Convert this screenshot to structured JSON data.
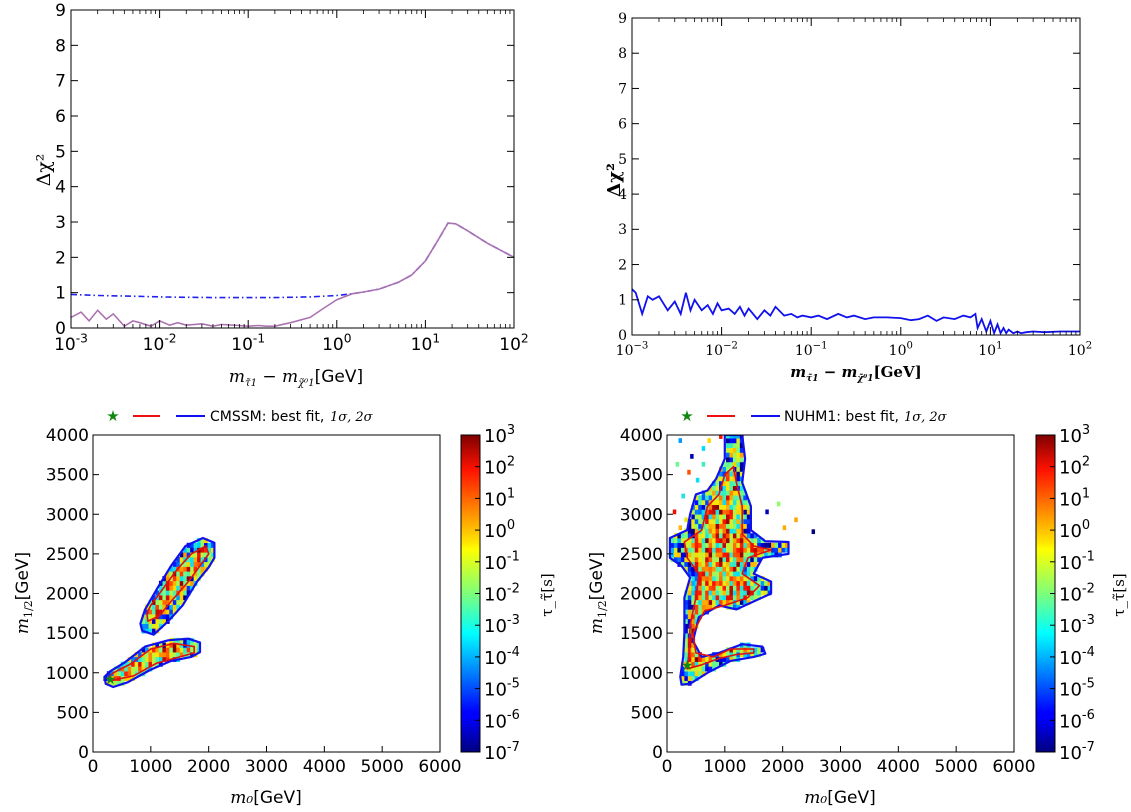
{
  "chart_data": [
    {
      "type": "line",
      "panel": "top-left",
      "x_scale": "log",
      "xlim": [
        0.001,
        100
      ],
      "ylim": [
        0,
        9
      ],
      "xlabel_math": "m_{τ̃1} − m_{χ̃⁰1}",
      "xlabel_unit": "[GeV]",
      "ylabel": "Δχ²",
      "x_ticks": [
        {
          "b": "10",
          "e": "-3"
        },
        {
          "b": "10",
          "e": "-2"
        },
        {
          "b": "10",
          "e": "-1"
        },
        {
          "b": "10",
          "e": "0"
        },
        {
          "b": "10",
          "e": "1"
        },
        {
          "b": "10",
          "e": "2"
        }
      ],
      "y_ticks": [
        "0",
        "1",
        "2",
        "3",
        "4",
        "5",
        "6",
        "7",
        "8",
        "9"
      ],
      "grid": false,
      "series": [
        {
          "style": "dash-dot",
          "color": "#2222ee",
          "x": [
            0.001,
            0.002,
            0.005,
            0.01,
            0.02,
            0.05,
            0.1,
            0.2,
            0.5,
            1.0,
            1.5,
            2.0,
            3.0,
            5.0,
            7.0,
            10,
            14,
            18,
            22,
            30,
            50,
            100
          ],
          "y": [
            0.95,
            0.92,
            0.9,
            0.88,
            0.87,
            0.86,
            0.86,
            0.86,
            0.88,
            0.92,
            0.97,
            1.02,
            1.1,
            1.3,
            1.5,
            1.9,
            2.5,
            2.97,
            2.95,
            2.75,
            2.4,
            2.0
          ]
        },
        {
          "style": "solid",
          "color": "#c070c8",
          "x": [
            0.001,
            0.0013,
            0.0016,
            0.002,
            0.0025,
            0.003,
            0.004,
            0.005,
            0.006,
            0.008,
            0.01,
            0.013,
            0.016,
            0.02,
            0.03,
            0.04,
            0.05,
            0.07,
            0.1,
            0.13,
            0.16,
            0.2,
            0.3,
            0.5,
            0.7,
            1.0,
            1.5,
            2.0,
            3.0,
            5.0,
            7.0,
            10,
            14,
            18,
            22,
            30,
            50,
            100
          ],
          "y": [
            0.3,
            0.45,
            0.2,
            0.5,
            0.25,
            0.4,
            0.05,
            0.2,
            0.15,
            0.05,
            0.2,
            0.08,
            0.15,
            0.08,
            0.12,
            0.05,
            0.1,
            0.08,
            0.05,
            0.07,
            0.05,
            0.05,
            0.15,
            0.3,
            0.55,
            0.8,
            0.97,
            1.02,
            1.1,
            1.3,
            1.5,
            1.9,
            2.5,
            2.97,
            2.95,
            2.75,
            2.4,
            2.0
          ]
        }
      ]
    },
    {
      "type": "line",
      "panel": "top-right",
      "x_scale": "log",
      "xlim": [
        0.001,
        100
      ],
      "ylim": [
        0,
        9
      ],
      "xlabel_math": "m_{τ̃1} − m_{χ̃⁰1}",
      "xlabel_unit": "[GeV]",
      "ylabel": "Δχ²",
      "x_ticks": [
        {
          "b": "10",
          "e": "−3"
        },
        {
          "b": "10",
          "e": "−2"
        },
        {
          "b": "10",
          "e": "−1"
        },
        {
          "b": "10",
          "e": "0"
        },
        {
          "b": "10",
          "e": "1"
        },
        {
          "b": "10",
          "e": "2"
        }
      ],
      "y_ticks": [
        "0",
        "1",
        "2",
        "3",
        "4",
        "5",
        "6",
        "7",
        "8",
        "9"
      ],
      "grid": false,
      "series": [
        {
          "style": "solid",
          "color": "#1111ee",
          "x": [
            0.001,
            0.0011,
            0.0013,
            0.0015,
            0.0017,
            0.002,
            0.0025,
            0.003,
            0.0035,
            0.004,
            0.0045,
            0.005,
            0.006,
            0.007,
            0.008,
            0.009,
            0.01,
            0.012,
            0.014,
            0.016,
            0.018,
            0.02,
            0.025,
            0.03,
            0.035,
            0.04,
            0.05,
            0.06,
            0.07,
            0.08,
            0.1,
            0.12,
            0.15,
            0.2,
            0.25,
            0.3,
            0.4,
            0.5,
            0.7,
            1.0,
            1.3,
            1.6,
            2.0,
            2.5,
            3.0,
            4.0,
            5.0,
            6.0,
            6.8,
            7.2,
            8.0,
            9.0,
            10,
            11,
            12,
            13,
            14,
            15,
            16,
            18,
            20,
            22,
            25,
            30,
            40,
            60,
            100
          ],
          "y": [
            1.3,
            1.2,
            0.6,
            1.1,
            1.0,
            1.1,
            0.7,
            0.95,
            0.6,
            1.2,
            0.7,
            1.0,
            0.7,
            0.85,
            0.6,
            0.9,
            0.7,
            0.75,
            0.6,
            0.8,
            0.55,
            0.75,
            0.45,
            0.7,
            0.55,
            0.8,
            0.55,
            0.6,
            0.5,
            0.55,
            0.5,
            0.55,
            0.45,
            0.6,
            0.5,
            0.55,
            0.45,
            0.5,
            0.5,
            0.48,
            0.42,
            0.45,
            0.55,
            0.4,
            0.5,
            0.45,
            0.55,
            0.5,
            0.6,
            0.2,
            0.45,
            0.1,
            0.4,
            0.05,
            0.3,
            0.05,
            0.2,
            0.05,
            0.15,
            0.05,
            0.1,
            0.05,
            0.08,
            0.1,
            0.08,
            0.1,
            0.1
          ]
        }
      ]
    },
    {
      "type": "heatmap",
      "panel": "bottom-left",
      "xlim": [
        0,
        6000
      ],
      "ylim": [
        0,
        4000
      ],
      "xlabel_math": "m₀",
      "xlabel_unit": "[GeV]",
      "ylabel_math": "m_{1/2}",
      "ylabel_unit": "[GeV]",
      "x_ticks": [
        "0",
        "1000",
        "2000",
        "3000",
        "4000",
        "5000",
        "6000"
      ],
      "y_ticks": [
        "0",
        "500",
        "1000",
        "1500",
        "2000",
        "2500",
        "3000",
        "3500",
        "4000"
      ],
      "legend_text": "CMSSM: best fit,",
      "legend_sigma": "1σ, 2σ",
      "colorbar_label": "τ_τ̃[s]",
      "colorbar_ticks": [
        {
          "b": "10",
          "e": "3"
        },
        {
          "b": "10",
          "e": "2"
        },
        {
          "b": "10",
          "e": "1"
        },
        {
          "b": "10",
          "e": "0"
        },
        {
          "b": "10",
          "e": "-1"
        },
        {
          "b": "10",
          "e": "-2"
        },
        {
          "b": "10",
          "e": "-3"
        },
        {
          "b": "10",
          "e": "-4"
        },
        {
          "b": "10",
          "e": "-5"
        },
        {
          "b": "10",
          "e": "-6"
        },
        {
          "b": "10",
          "e": "-7"
        }
      ],
      "regions": [
        {
          "name": "lower strip",
          "outline_2sigma": [
            [
              220,
              860
            ],
            [
              350,
              820
            ],
            [
              600,
              880
            ],
            [
              1000,
              1040
            ],
            [
              1350,
              1150
            ],
            [
              1700,
              1200
            ],
            [
              1850,
              1260
            ],
            [
              1850,
              1380
            ],
            [
              1650,
              1430
            ],
            [
              1300,
              1410
            ],
            [
              900,
              1330
            ],
            [
              550,
              1130
            ],
            [
              300,
              1020
            ],
            [
              200,
              950
            ]
          ],
          "outline_1sigma": [
            [
              300,
              900
            ],
            [
              700,
              960
            ],
            [
              1100,
              1120
            ],
            [
              1500,
              1200
            ],
            [
              1750,
              1250
            ],
            [
              1750,
              1330
            ],
            [
              1400,
              1370
            ],
            [
              1000,
              1300
            ],
            [
              650,
              1110
            ],
            [
              350,
              1000
            ],
            [
              280,
              950
            ]
          ]
        },
        {
          "name": "upper band",
          "outline_2sigma": [
            [
              850,
              1530
            ],
            [
              1050,
              1480
            ],
            [
              1300,
              1650
            ],
            [
              1550,
              1850
            ],
            [
              1800,
              2150
            ],
            [
              2000,
              2330
            ],
            [
              2100,
              2450
            ],
            [
              2100,
              2640
            ],
            [
              1900,
              2700
            ],
            [
              1600,
              2600
            ],
            [
              1350,
              2350
            ],
            [
              1100,
              2050
            ],
            [
              900,
              1800
            ],
            [
              820,
              1620
            ]
          ],
          "outline_1sigma": [
            [
              950,
              1650
            ],
            [
              1150,
              1720
            ],
            [
              1350,
              1900
            ],
            [
              1650,
              2150
            ],
            [
              1850,
              2350
            ],
            [
              2000,
              2500
            ],
            [
              1950,
              2600
            ],
            [
              1700,
              2500
            ],
            [
              1450,
              2300
            ],
            [
              1200,
              2050
            ],
            [
              1000,
              1850
            ],
            [
              930,
              1750
            ]
          ]
        }
      ],
      "best_fit": [
        300,
        920
      ]
    },
    {
      "type": "heatmap",
      "panel": "bottom-right",
      "xlim": [
        0,
        6000
      ],
      "ylim": [
        0,
        4000
      ],
      "xlabel_math": "m₀",
      "xlabel_unit": "[GeV]",
      "ylabel_math": "m_{1/2}",
      "ylabel_unit": "[GeV]",
      "x_ticks": [
        "0",
        "1000",
        "2000",
        "3000",
        "4000",
        "5000",
        "6000"
      ],
      "y_ticks": [
        "0",
        "500",
        "1000",
        "1500",
        "2000",
        "2500",
        "3000",
        "3500",
        "4000"
      ],
      "legend_text": "NUHM1: best fit,",
      "legend_sigma": "1σ, 2σ",
      "colorbar_label": "τ_τ̃[s]",
      "colorbar_ticks": [
        {
          "b": "10",
          "e": "3"
        },
        {
          "b": "10",
          "e": "2"
        },
        {
          "b": "10",
          "e": "1"
        },
        {
          "b": "10",
          "e": "0"
        },
        {
          "b": "10",
          "e": "-1"
        },
        {
          "b": "10",
          "e": "-2"
        },
        {
          "b": "10",
          "e": "-3"
        },
        {
          "b": "10",
          "e": "-4"
        },
        {
          "b": "10",
          "e": "-5"
        },
        {
          "b": "10",
          "e": "-6"
        },
        {
          "b": "10",
          "e": "-7"
        }
      ],
      "regions": [
        {
          "name": "main region",
          "outline_2sigma": [
            [
              250,
              850
            ],
            [
              400,
              860
            ],
            [
              700,
              1000
            ],
            [
              1100,
              1150
            ],
            [
              1500,
              1200
            ],
            [
              1700,
              1240
            ],
            [
              1650,
              1330
            ],
            [
              1300,
              1360
            ],
            [
              900,
              1250
            ],
            [
              600,
              1200
            ],
            [
              450,
              1400
            ],
            [
              550,
              1700
            ],
            [
              900,
              1850
            ],
            [
              1200,
              1800
            ],
            [
              1500,
              1900
            ],
            [
              1800,
              2000
            ],
            [
              1800,
              2150
            ],
            [
              1500,
              2250
            ],
            [
              1650,
              2450
            ],
            [
              2100,
              2500
            ],
            [
              2100,
              2650
            ],
            [
              1700,
              2660
            ],
            [
              1450,
              2800
            ],
            [
              1450,
              3100
            ],
            [
              1300,
              3400
            ],
            [
              1350,
              3700
            ],
            [
              1300,
              4000
            ],
            [
              1000,
              4000
            ],
            [
              1000,
              3700
            ],
            [
              850,
              3450
            ],
            [
              700,
              3300
            ],
            [
              500,
              3250
            ],
            [
              400,
              3000
            ],
            [
              350,
              2800
            ],
            [
              50,
              2700
            ],
            [
              50,
              2450
            ],
            [
              250,
              2350
            ],
            [
              400,
              2200
            ],
            [
              300,
              1950
            ],
            [
              300,
              1500
            ],
            [
              280,
              1200
            ],
            [
              230,
              950
            ]
          ],
          "outline_1sigma": [
            [
              350,
              1050
            ],
            [
              600,
              1100
            ],
            [
              900,
              1180
            ],
            [
              1200,
              1230
            ],
            [
              1500,
              1250
            ],
            [
              1500,
              1300
            ],
            [
              1100,
              1300
            ],
            [
              800,
              1200
            ],
            [
              500,
              1250
            ],
            [
              450,
              1500
            ],
            [
              650,
              1780
            ],
            [
              1000,
              1850
            ],
            [
              1400,
              1950
            ],
            [
              1600,
              2100
            ],
            [
              1300,
              2250
            ],
            [
              1400,
              2450
            ],
            [
              1800,
              2550
            ],
            [
              1500,
              2600
            ],
            [
              1300,
              2750
            ],
            [
              1300,
              3100
            ],
            [
              1200,
              3400
            ],
            [
              1150,
              3600
            ],
            [
              1000,
              3500
            ],
            [
              900,
              3250
            ],
            [
              700,
              3100
            ],
            [
              600,
              2800
            ],
            [
              300,
              2650
            ],
            [
              350,
              2450
            ],
            [
              550,
              2250
            ],
            [
              500,
              1950
            ],
            [
              400,
              1600
            ],
            [
              380,
              1250
            ]
          ]
        }
      ],
      "best_fit": [
        350,
        1100
      ],
      "scatter_points": [
        [
          200,
          3900
        ],
        [
          400,
          3700
        ],
        [
          350,
          3500
        ],
        [
          600,
          3600
        ],
        [
          250,
          3200
        ],
        [
          100,
          3000
        ],
        [
          300,
          2900
        ],
        [
          200,
          2800
        ],
        [
          700,
          3900
        ],
        [
          600,
          3800
        ],
        [
          900,
          3950
        ],
        [
          2200,
          2900
        ],
        [
          2500,
          2750
        ],
        [
          1900,
          3100
        ],
        [
          1700,
          3000
        ],
        [
          150,
          3600
        ],
        [
          500,
          3400
        ],
        [
          2000,
          2800
        ]
      ]
    }
  ]
}
